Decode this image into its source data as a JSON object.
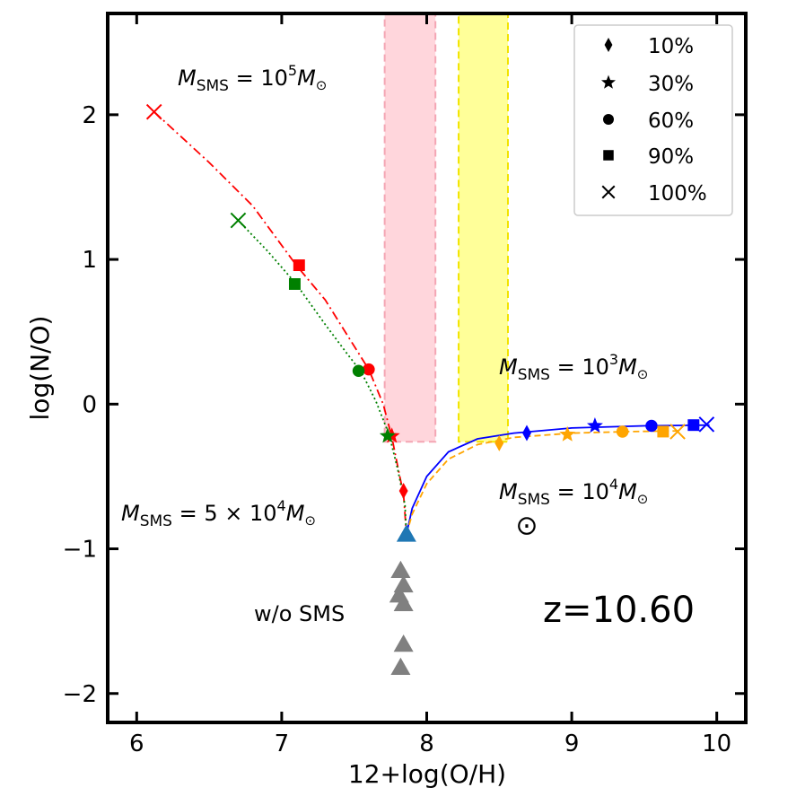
{
  "chart_data": {
    "type": "scatter",
    "xlabel": "12+log(O/H)",
    "ylabel": "log(N/O)",
    "xlim": [
      5.8,
      10.2
    ],
    "ylim": [
      -2.2,
      2.7
    ],
    "xticks": [
      6,
      7,
      8,
      9,
      10
    ],
    "yticks": [
      -2,
      -1,
      0,
      1,
      2
    ],
    "xtick_labels": [
      "6",
      "7",
      "8",
      "9",
      "10"
    ],
    "ytick_labels": [
      "−2",
      "−1",
      "0",
      "1",
      "2"
    ],
    "shaded_bands": [
      {
        "name": "pink-band",
        "x0": 7.71,
        "x1": 8.06,
        "y0": -0.26,
        "y1": 2.7,
        "fill": "#ffd6dc",
        "edge": "#f4a6b4"
      },
      {
        "name": "yellow-band",
        "x0": 8.22,
        "x1": 8.56,
        "y0": -0.26,
        "y1": 2.7,
        "fill": "#ffff99",
        "edge": "#f2e400"
      }
    ],
    "series": [
      {
        "name": "M_SMS = 10^5 M_sun",
        "color": "#ff0000",
        "linestyle": "dashdot",
        "curve": [
          [
            6.12,
            2.02
          ],
          [
            6.5,
            1.67
          ],
          [
            6.8,
            1.37
          ],
          [
            7.1,
            0.96
          ],
          [
            7.3,
            0.72
          ],
          [
            7.45,
            0.48
          ],
          [
            7.6,
            0.24
          ],
          [
            7.7,
            0.0
          ],
          [
            7.76,
            -0.23
          ],
          [
            7.81,
            -0.48
          ],
          [
            7.84,
            -0.62
          ],
          [
            7.86,
            -0.9
          ]
        ],
        "markers": [
          {
            "label": "10%",
            "marker": "diamond",
            "x": 7.84,
            "y": -0.6
          },
          {
            "label": "30%",
            "marker": "star",
            "x": 7.76,
            "y": -0.22
          },
          {
            "label": "60%",
            "marker": "circle",
            "x": 7.6,
            "y": 0.24
          },
          {
            "label": "90%",
            "marker": "square",
            "x": 7.12,
            "y": 0.96
          },
          {
            "label": "100%",
            "marker": "x",
            "x": 6.12,
            "y": 2.02
          }
        ]
      },
      {
        "name": "M_SMS = 5x10^4 M_sun",
        "color": "#008000",
        "linestyle": "dotted",
        "curve": [
          [
            6.7,
            1.27
          ],
          [
            6.9,
            1.06
          ],
          [
            7.1,
            0.83
          ],
          [
            7.3,
            0.55
          ],
          [
            7.45,
            0.35
          ],
          [
            7.55,
            0.22
          ],
          [
            7.65,
            0.02
          ],
          [
            7.74,
            -0.21
          ],
          [
            7.8,
            -0.45
          ],
          [
            7.85,
            -0.7
          ],
          [
            7.86,
            -0.9
          ]
        ],
        "markers": [
          {
            "label": "30%",
            "marker": "star",
            "x": 7.73,
            "y": -0.22
          },
          {
            "label": "60%",
            "marker": "circle",
            "x": 7.53,
            "y": 0.23
          },
          {
            "label": "90%",
            "marker": "square",
            "x": 7.09,
            "y": 0.83
          },
          {
            "label": "100%",
            "marker": "x",
            "x": 6.7,
            "y": 1.27
          }
        ]
      },
      {
        "name": "M_SMS = 10^3 M_sun",
        "color": "#0000ff",
        "linestyle": "solid",
        "curve": [
          [
            7.86,
            -0.9
          ],
          [
            7.9,
            -0.72
          ],
          [
            8.0,
            -0.5
          ],
          [
            8.15,
            -0.33
          ],
          [
            8.35,
            -0.24
          ],
          [
            8.6,
            -0.2
          ],
          [
            9.0,
            -0.165
          ],
          [
            9.5,
            -0.15
          ],
          [
            9.95,
            -0.145
          ]
        ],
        "markers": [
          {
            "label": "10%",
            "marker": "diamond",
            "x": 8.69,
            "y": -0.2
          },
          {
            "label": "30%",
            "marker": "star",
            "x": 9.16,
            "y": -0.15
          },
          {
            "label": "60%",
            "marker": "circle",
            "x": 9.55,
            "y": -0.15
          },
          {
            "label": "90%",
            "marker": "square",
            "x": 9.84,
            "y": -0.145
          },
          {
            "label": "100%",
            "marker": "x",
            "x": 9.93,
            "y": -0.14
          }
        ]
      },
      {
        "name": "M_SMS = 10^4 M_sun",
        "color": "#ffa500",
        "linestyle": "dashed",
        "curve": [
          [
            7.86,
            -0.9
          ],
          [
            7.9,
            -0.76
          ],
          [
            8.0,
            -0.55
          ],
          [
            8.15,
            -0.38
          ],
          [
            8.35,
            -0.28
          ],
          [
            8.6,
            -0.23
          ],
          [
            9.0,
            -0.2
          ],
          [
            9.4,
            -0.19
          ],
          [
            9.75,
            -0.185
          ]
        ],
        "markers": [
          {
            "label": "10%",
            "marker": "diamond",
            "x": 8.5,
            "y": -0.27
          },
          {
            "label": "30%",
            "marker": "star",
            "x": 8.97,
            "y": -0.21
          },
          {
            "label": "60%",
            "marker": "circle",
            "x": 9.35,
            "y": -0.19
          },
          {
            "label": "90%",
            "marker": "square",
            "x": 9.63,
            "y": -0.19
          },
          {
            "label": "100%",
            "marker": "x",
            "x": 9.73,
            "y": -0.19
          }
        ]
      }
    ],
    "start_point": {
      "marker": "triangle",
      "color": "#1f77b4",
      "x": 7.86,
      "y": -0.9
    },
    "no_sms_points": {
      "label": "w/o SMS",
      "marker": "triangle",
      "color": "#808080",
      "points": [
        [
          7.82,
          -1.15
        ],
        [
          7.84,
          -1.25
        ],
        [
          7.81,
          -1.32
        ],
        [
          7.84,
          -1.38
        ],
        [
          7.84,
          -1.66
        ],
        [
          7.82,
          -1.82
        ]
      ]
    },
    "solar": {
      "symbol": "⊙",
      "x": 8.69,
      "y": -0.84
    },
    "annotations": {
      "red": {
        "base": "M",
        "sub": "SMS",
        "mid": " = 10",
        "sup": "5",
        "tail": "M",
        "tailsub": "⊙",
        "color": "#ff0000"
      },
      "green": {
        "base": "M",
        "sub": "SMS",
        "mid": " = 5 × 10",
        "sup": "4",
        "tail": "M",
        "tailsub": "⊙",
        "color": "#008000"
      },
      "blue": {
        "base": "M",
        "sub": "SMS",
        "mid": " = 10",
        "sup": "3",
        "tail": "M",
        "tailsub": "⊙",
        "color": "#0000ff"
      },
      "orange": {
        "base": "M",
        "sub": "SMS",
        "mid": " = 10",
        "sup": "4",
        "tail": "M",
        "tailsub": "⊙",
        "color": "#ffa500"
      },
      "redshift": "z=10.60",
      "no_sms": "w/o SMS"
    },
    "legend": {
      "placement": "top-right",
      "entries": [
        {
          "marker": "diamond",
          "label": "10%"
        },
        {
          "marker": "star",
          "label": "30%"
        },
        {
          "marker": "circle",
          "label": "60%"
        },
        {
          "marker": "square",
          "label": "90%"
        },
        {
          "marker": "x",
          "label": "100%"
        }
      ]
    }
  }
}
